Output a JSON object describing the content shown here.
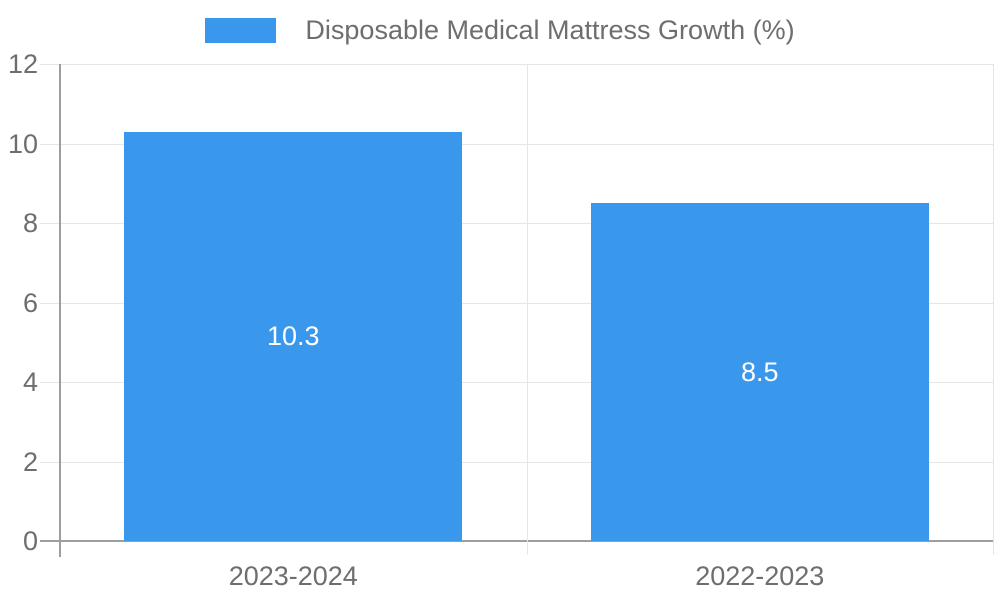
{
  "chart_data": {
    "type": "bar",
    "title": "Disposable Medical Mattress Growth (%)",
    "legend_position": "top",
    "categories": [
      "2023-2024",
      "2022-2023"
    ],
    "values": [
      10.3,
      8.5
    ],
    "value_labels": [
      "10.3",
      "8.5"
    ],
    "ylim": [
      0,
      12
    ],
    "yticks": [
      0,
      2,
      4,
      6,
      8,
      10,
      12
    ],
    "ytick_labels": [
      "0",
      "2",
      "4",
      "6",
      "8",
      "10",
      "12"
    ],
    "grid": true,
    "colors": {
      "bar": "#3998ec",
      "bar_label": "#ffffff",
      "axis": "#9e9e9e",
      "gridline": "#e6e6e6",
      "tick_text": "#6e6e6e",
      "background": "#ffffff"
    }
  }
}
